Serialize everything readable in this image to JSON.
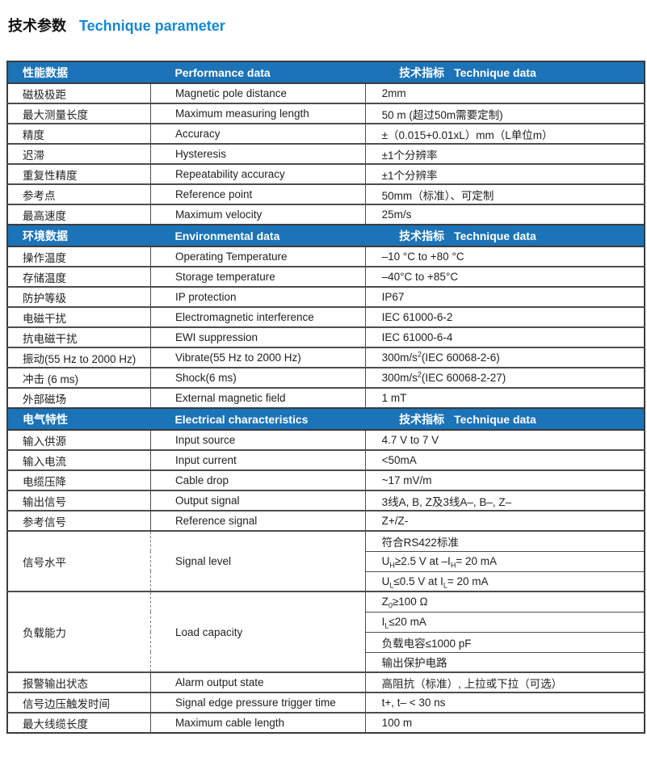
{
  "title": {
    "zh": "技术参数",
    "en": "Technique parameter"
  },
  "colors": {
    "header_bg": "#1b73b8",
    "title_accent": "#1787d2",
    "border_dark": "#3c3c3c",
    "border_mid": "#4d4d4d"
  },
  "table": {
    "tech_label": {
      "zh": "技术指标",
      "en": "Technique data"
    },
    "sections": [
      {
        "header": {
          "zh": "性能数据",
          "en": "Performance data"
        },
        "rows": [
          {
            "zh": "磁极极距",
            "en": "Magnetic pole distance",
            "values": [
              "2mm"
            ]
          },
          {
            "zh": "最大测量长度",
            "en": "Maximum measuring length",
            "values": [
              "50 m (超过50m需要定制)"
            ]
          },
          {
            "zh": "精度",
            "en": "Accuracy",
            "values": [
              "±（0.015+0.01xL）mm（L单位m）"
            ]
          },
          {
            "zh": "迟滞",
            "en": "Hysteresis",
            "values": [
              "±1个分辨率"
            ]
          },
          {
            "zh": "重复性精度",
            "en": "Repeatability accuracy",
            "values": [
              "±1个分辨率"
            ]
          },
          {
            "zh": "参考点",
            "en": "Reference point",
            "values": [
              "50mm（标准）、可定制"
            ]
          },
          {
            "zh": "最高速度",
            "en": "Maximum velocity",
            "values": [
              "25m/s"
            ]
          }
        ]
      },
      {
        "header": {
          "zh": "环境数据",
          "en": "Environmental data"
        },
        "rows": [
          {
            "zh": "操作温度",
            "en": "Operating Temperature",
            "values": [
              "–10 °C to +80 °C"
            ]
          },
          {
            "zh": "存储温度",
            "en": "Storage temperature",
            "values": [
              "–40°C to +85°C"
            ]
          },
          {
            "zh": "防护等级",
            "en": "IP protection",
            "values": [
              "IP67"
            ]
          },
          {
            "zh": "电磁干扰",
            "en": "Electromagnetic interference",
            "values": [
              "IEC 61000-6-2"
            ]
          },
          {
            "zh": "抗电磁干扰",
            "en": "EWI suppression",
            "values": [
              "IEC 61000-6-4"
            ]
          },
          {
            "zh": "振动(55 Hz to 2000 Hz)",
            "en": "Vibrate(55 Hz to 2000 Hz)",
            "values": [
              "300m/s^2^(IEC 60068-2-6)"
            ]
          },
          {
            "zh": "冲击 (6 ms)",
            "en": "Shock(6 ms)",
            "values": [
              "300m/s^2^(IEC 60068-2-27)"
            ]
          },
          {
            "zh": "外部磁场",
            "en": "External magnetic field",
            "values": [
              "1 mT"
            ]
          }
        ]
      },
      {
        "header": {
          "zh": "电气特性",
          "en": "Electrical characteristics"
        },
        "rows": [
          {
            "zh": "输入供源",
            "en": "Input source",
            "values": [
              "4.7 V to 7 V"
            ]
          },
          {
            "zh": "输入电流",
            "en": "Input current",
            "values": [
              "<50mA"
            ]
          },
          {
            "zh": "电缆压降",
            "en": "Cable drop",
            "values": [
              "~17 mV/m"
            ]
          },
          {
            "zh": "输出信号",
            "en": "Output signal",
            "values": [
              "3线A, B, Z及3线A–, B–, Z–"
            ]
          },
          {
            "zh": "参考信号",
            "en": "Reference signal",
            "values": [
              "Z+/Z-"
            ]
          },
          {
            "zh": "信号水平",
            "en": "Signal level",
            "values": [
              "符合RS422标准",
              "U~H~≥2.5 V at –I~H~= 20 mA",
              "U~L~≤0.5 V at I~L~= 20 mA"
            ]
          },
          {
            "zh": "负载能力",
            "en": "Load capacity",
            "values": [
              "Z~0~≥100 Ω",
              "I~L~≤20 mA",
              "负载电容≤1000 pF",
              "输出保护电路"
            ]
          },
          {
            "zh": "报警输出状态",
            "en": "Alarm output state",
            "values": [
              "高阻抗（标准）, 上拉或下拉（可选）"
            ]
          },
          {
            "zh": "信号边压触发时间",
            "en": "Signal edge pressure trigger time",
            "values": [
              "t+, t– < 30 ns"
            ]
          },
          {
            "zh": "最大线缆长度",
            "en": "Maximum cable length",
            "values": [
              "100 m"
            ]
          }
        ]
      }
    ]
  }
}
